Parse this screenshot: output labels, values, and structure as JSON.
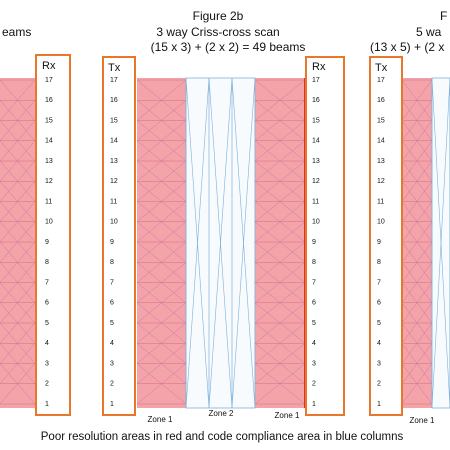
{
  "left_panel": {
    "heading": "eams",
    "rx_label": "Rx",
    "rx_numbers": [
      17,
      16,
      15,
      14,
      13,
      12,
      11,
      10,
      9,
      8,
      7,
      6,
      5,
      4,
      3,
      2,
      1
    ]
  },
  "figure_2b": {
    "title": "Figure 2b",
    "subtitle": "3 way Criss-cross scan",
    "formula": "(15 x 3) + (2 x 2) = 49 beams",
    "tx_label": "Tx",
    "tx_numbers": [
      17,
      16,
      15,
      14,
      13,
      12,
      11,
      10,
      9,
      8,
      7,
      6,
      5,
      4,
      3,
      2,
      1
    ],
    "rx_label": "Rx",
    "rx_numbers": [
      17,
      16,
      15,
      14,
      13,
      12,
      11,
      10,
      9,
      8,
      7,
      6,
      5,
      4,
      3,
      2,
      1
    ],
    "zones": [
      "Zone 1",
      "Zone 2",
      "Zone 1"
    ]
  },
  "right_panel": {
    "title": "F",
    "subtitle": "5 wa",
    "formula": "(13 x 5) + (2 x",
    "tx_label": "Tx",
    "tx_numbers": [
      17,
      16,
      15,
      14,
      13,
      12,
      11,
      10,
      9,
      8,
      7,
      6,
      5,
      4,
      3,
      2,
      1
    ],
    "zones": [
      "Zone 1"
    ]
  },
  "caption": "Poor resolution areas in  red and code compliance area in blue columns"
}
